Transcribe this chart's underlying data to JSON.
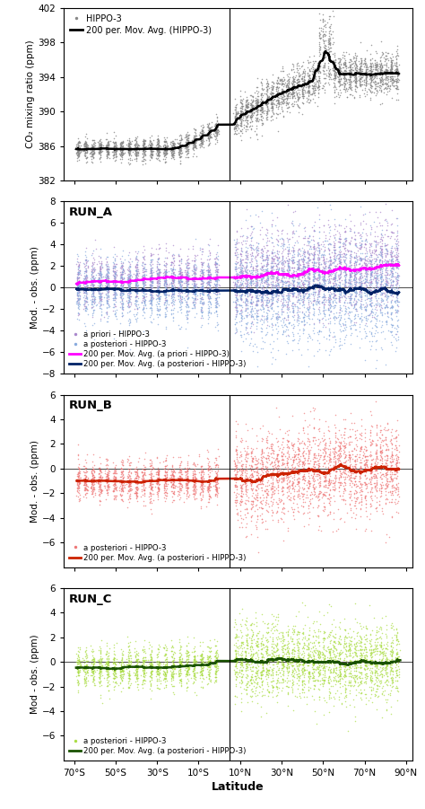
{
  "x_ticks_labels": [
    "70°S",
    "50°S",
    "30°S",
    "10°S",
    "10°N",
    "30°N",
    "50°N",
    "70°N",
    "90°N"
  ],
  "x_ticks_vals": [
    -70,
    -50,
    -30,
    -10,
    10,
    30,
    50,
    70,
    90
  ],
  "x_vline": 5,
  "panel1": {
    "ylabel": "CO₂ mixing ratio (ppm)",
    "ylim": [
      382,
      402
    ],
    "yticks": [
      382,
      386,
      390,
      394,
      398,
      402
    ],
    "scatter_color": "#888888",
    "line_color": "#000000",
    "legend_scatter": "HIPPO-3",
    "legend_line": "200 per. Mov. Avg. (HIPPO-3)"
  },
  "panel2": {
    "label": "RUN_A",
    "ylabel": "Mod. - obs. (ppm)",
    "ylim": [
      -8,
      8
    ],
    "yticks": [
      -8,
      -6,
      -4,
      -2,
      0,
      2,
      4,
      6,
      8
    ],
    "apriori_scatter_color": "#aa88cc",
    "aposteriori_scatter_color": "#88aadd",
    "apriori_line_color": "#ff00ff",
    "aposteriori_line_color": "#002266",
    "legend_apriori_scatter": "a priori - HIPPO-3",
    "legend_aposteriori_scatter": "a posteriori - HIPPO-3",
    "legend_apriori_line": "200 per. Mov. Avg. (a priori - HIPPO-3)",
    "legend_aposteriori_line": "200 per. Mov. Avg. (a posteriori - HIPPO-3)"
  },
  "panel3": {
    "label": "RUN_B",
    "ylabel": "Mod. - obs. (ppm)",
    "ylim": [
      -8,
      6
    ],
    "yticks": [
      -6,
      -4,
      -2,
      0,
      2,
      4,
      6
    ],
    "aposteriori_scatter_color": "#ee7777",
    "aposteriori_line_color": "#cc2200",
    "legend_aposteriori_scatter": "a posteriori - HIPPO-3",
    "legend_aposteriori_line": "200 per. Mov. Avg. (a posteriori - HIPPO-3)"
  },
  "panel4": {
    "label": "RUN_C",
    "ylabel": "Mod - obs. (ppm)",
    "ylim": [
      -8,
      6
    ],
    "yticks": [
      -6,
      -4,
      -2,
      0,
      2,
      4,
      6
    ],
    "aposteriori_scatter_color": "#aadd44",
    "aposteriori_line_color": "#1a5200",
    "legend_aposteriori_scatter": "a posteriori - HIPPO-3",
    "legend_aposteriori_line": "200 per. Mov. Avg. (a posteriori - HIPPO-3)"
  },
  "xlabel": "Latitude",
  "bg_color": "#ffffff"
}
